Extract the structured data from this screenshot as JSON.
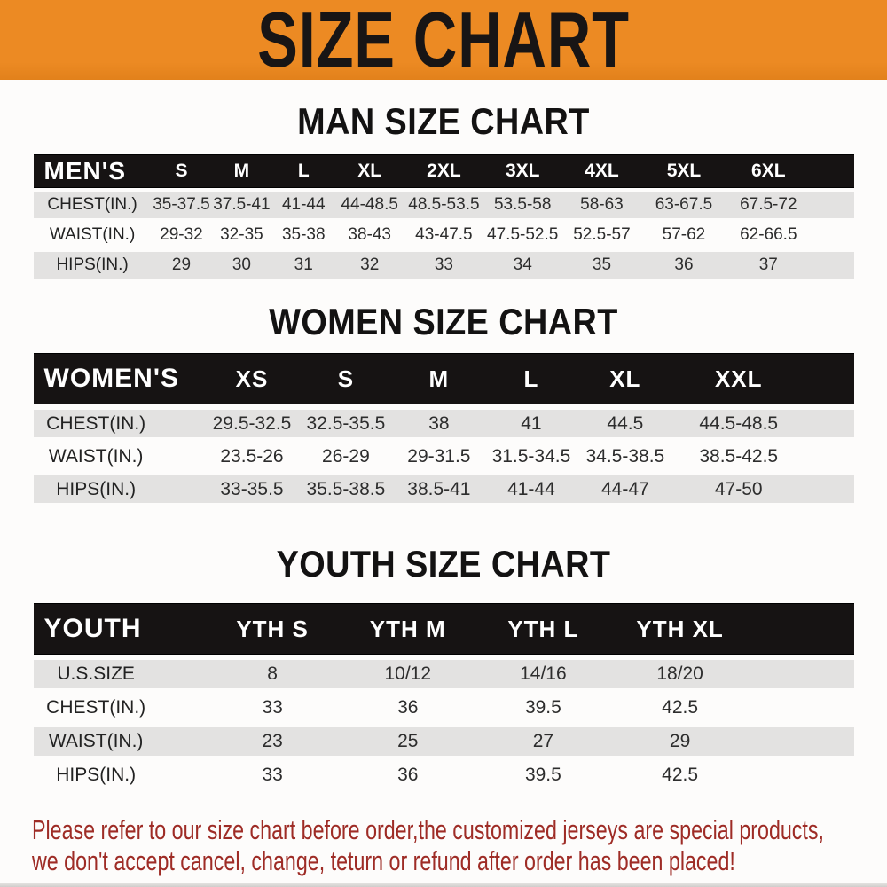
{
  "banner": {
    "title": "SIZE CHART"
  },
  "theme": {
    "banner_orange": "#ec8a23",
    "header_bar_black": "#161313",
    "row_gray": "#e3e2e1",
    "disclaimer_red": "#9e2c26"
  },
  "sections": [
    {
      "id": "men",
      "title": "MAN SIZE CHART",
      "header_label": "MEN'S",
      "columns": [
        "S",
        "M",
        "L",
        "XL",
        "2XL",
        "3XL",
        "4XL",
        "5XL",
        "6XL"
      ],
      "rows": [
        {
          "label": "CHEST(IN.)",
          "values": [
            "35-37.5",
            "37.5-41",
            "41-44",
            "44-48.5",
            "48.5-53.5",
            "53.5-58",
            "58-63",
            "63-67.5",
            "67.5-72"
          ]
        },
        {
          "label": "WAIST(IN.)",
          "values": [
            "29-32",
            "32-35",
            "35-38",
            "38-43",
            "43-47.5",
            "47.5-52.5",
            "52.5-57",
            "57-62",
            "62-66.5"
          ]
        },
        {
          "label": "HIPS(IN.)",
          "values": [
            "29",
            "30",
            "31",
            "32",
            "33",
            "34",
            "35",
            "36",
            "37"
          ]
        }
      ]
    },
    {
      "id": "women",
      "title": "WOMEN SIZE CHART",
      "header_label": "WOMEN'S",
      "columns": [
        "XS",
        "S",
        "M",
        "L",
        "XL",
        "XXL"
      ],
      "rows": [
        {
          "label": "CHEST(IN.)",
          "values": [
            "29.5-32.5",
            "32.5-35.5",
            "38",
            "41",
            "44.5",
            "44.5-48.5"
          ]
        },
        {
          "label": "WAIST(IN.)",
          "values": [
            "23.5-26",
            "26-29",
            "29-31.5",
            "31.5-34.5",
            "34.5-38.5",
            "38.5-42.5"
          ]
        },
        {
          "label": "HIPS(IN.)",
          "values": [
            "33-35.5",
            "35.5-38.5",
            "38.5-41",
            "41-44",
            "44-47",
            "47-50"
          ]
        }
      ]
    },
    {
      "id": "youth",
      "title": "YOUTH SIZE CHART",
      "header_label": "YOUTH",
      "columns": [
        "YTH S",
        "YTH M",
        "YTH L",
        "YTH XL"
      ],
      "rows": [
        {
          "label": "U.S.SIZE",
          "values": [
            "8",
            "10/12",
            "14/16",
            "18/20"
          ]
        },
        {
          "label": "CHEST(IN.)",
          "values": [
            "33",
            "36",
            "39.5",
            "42.5"
          ]
        },
        {
          "label": "WAIST(IN.)",
          "values": [
            "23",
            "25",
            "27",
            "29"
          ]
        },
        {
          "label": "HIPS(IN.)",
          "values": [
            "33",
            "36",
            "39.5",
            "42.5"
          ]
        }
      ]
    }
  ],
  "disclaimer": {
    "line1": "Please refer to our size chart before order,the customized jerseys are special products,",
    "line2": "we don't accept cancel, change, teturn or refund after order has been placed!"
  }
}
